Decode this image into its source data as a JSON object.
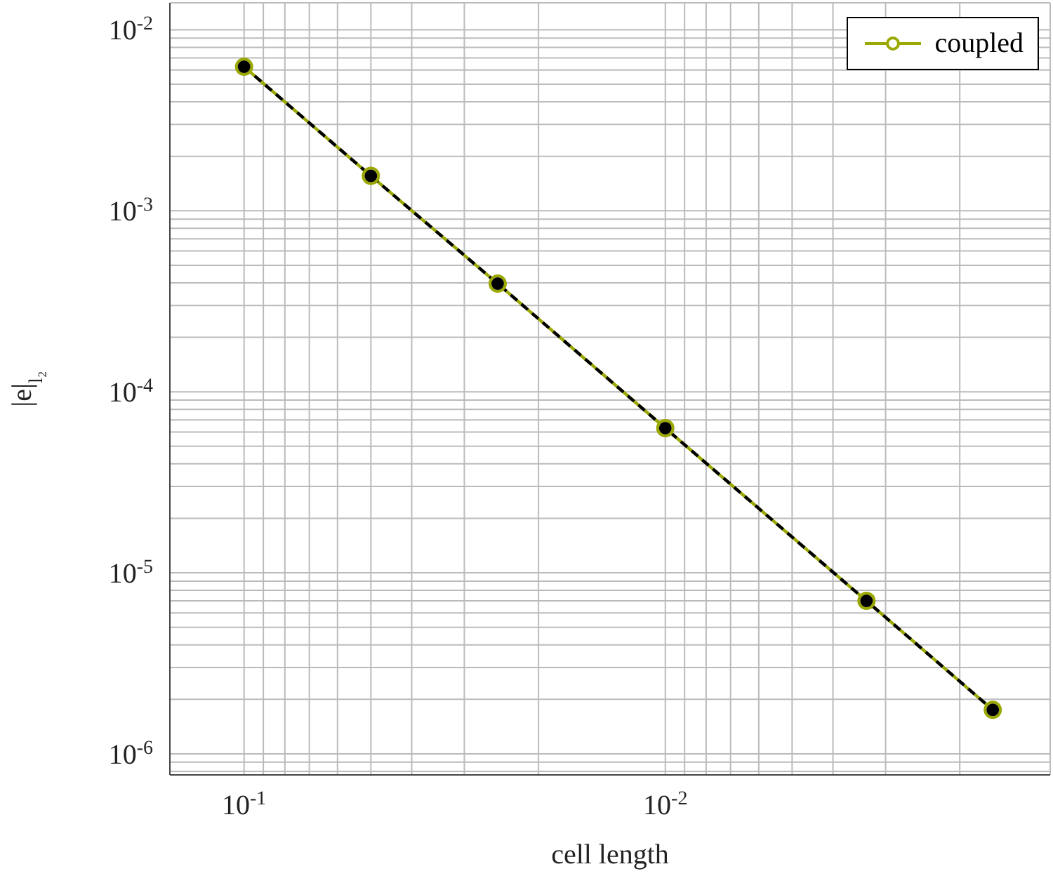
{
  "chart_data": {
    "type": "line",
    "xlabel": "cell length",
    "ylabel": "|e|$_{l₂}$",
    "log": "xy",
    "grid": true,
    "legend": "top right",
    "x": [
      0.1,
      0.05,
      0.025,
      0.01,
      0.00333,
      0.00167
    ],
    "xlim": [
      0.15,
      0.00122
    ],
    "xticks": [
      {
        "value": 0.1,
        "label": "10$^{-1}$"
      },
      {
        "value": 0.09,
        "label": null
      },
      {
        "value": 0.08,
        "label": null
      },
      {
        "value": 0.07,
        "label": null
      },
      {
        "value": 0.06,
        "label": null
      },
      {
        "value": 0.05,
        "label": null
      },
      {
        "value": 0.04,
        "label": null
      },
      {
        "value": 0.03,
        "label": null
      },
      {
        "value": 0.02,
        "label": null
      },
      {
        "value": 0.01,
        "label": "10$^{-2}$"
      },
      {
        "value": 0.009,
        "label": null
      },
      {
        "value": 0.008,
        "label": null
      },
      {
        "value": 0.007,
        "label": null
      },
      {
        "value": 0.006,
        "label": null
      },
      {
        "value": 0.005,
        "label": null
      },
      {
        "value": 0.004,
        "label": null
      },
      {
        "value": 0.003,
        "label": null
      },
      {
        "value": 0.002,
        "label": null
      }
    ],
    "ylim": [
      7.65e-07,
      0.0141
    ],
    "yticks": [
      {
        "value": 0.01,
        "label": "10$^{-2}$"
      },
      {
        "value": 0.009,
        "label": null
      },
      {
        "value": 0.008,
        "label": null
      },
      {
        "value": 0.007,
        "label": null
      },
      {
        "value": 0.006,
        "label": null
      },
      {
        "value": 0.005,
        "label": null
      },
      {
        "value": 0.004,
        "label": null
      },
      {
        "value": 0.003,
        "label": null
      },
      {
        "value": 0.002,
        "label": null
      },
      {
        "value": 0.001,
        "label": "10$^{-3}$"
      },
      {
        "value": 0.0009,
        "label": null
      },
      {
        "value": 0.0008,
        "label": null
      },
      {
        "value": 0.0007,
        "label": null
      },
      {
        "value": 0.0006,
        "label": null
      },
      {
        "value": 0.0005,
        "label": null
      },
      {
        "value": 0.0004,
        "label": null
      },
      {
        "value": 0.0003,
        "label": null
      },
      {
        "value": 0.0002,
        "label": null
      },
      {
        "value": 0.0001,
        "label": "10$^{-4}$"
      },
      {
        "value": 9e-05,
        "label": null
      },
      {
        "value": 8e-05,
        "label": null
      },
      {
        "value": 7e-05,
        "label": null
      },
      {
        "value": 6e-05,
        "label": null
      },
      {
        "value": 5e-05,
        "label": null
      },
      {
        "value": 4e-05,
        "label": null
      },
      {
        "value": 3e-05,
        "label": null
      },
      {
        "value": 2e-05,
        "label": null
      },
      {
        "value": 1e-05,
        "label": "10$^{-5}$"
      },
      {
        "value": 9e-06,
        "label": null
      },
      {
        "value": 8e-06,
        "label": null
      },
      {
        "value": 7e-06,
        "label": null
      },
      {
        "value": 6e-06,
        "label": null
      },
      {
        "value": 5e-06,
        "label": null
      },
      {
        "value": 4e-06,
        "label": null
      },
      {
        "value": 3e-06,
        "label": null
      },
      {
        "value": 2e-06,
        "label": null
      },
      {
        "value": 1e-06,
        "label": "10$^{-6}$"
      },
      {
        "value": 9e-07,
        "label": null
      },
      {
        "value": 8e-07,
        "label": null
      }
    ],
    "series": [
      {
        "name": "coupled",
        "color": "#9aa800",
        "marker": "circle",
        "line_style": "solid",
        "values": [
          0.00625,
          0.00156,
          0.000396,
          6.3e-05,
          7e-06,
          1.75e-06
        ]
      },
      {
        "color": "#000000",
        "marker": "circle",
        "line_style": "dashed",
        "values": [
          0.00625,
          0.00156,
          0.000396,
          6.3e-05,
          7e-06,
          1.75e-06
        ]
      }
    ]
  }
}
